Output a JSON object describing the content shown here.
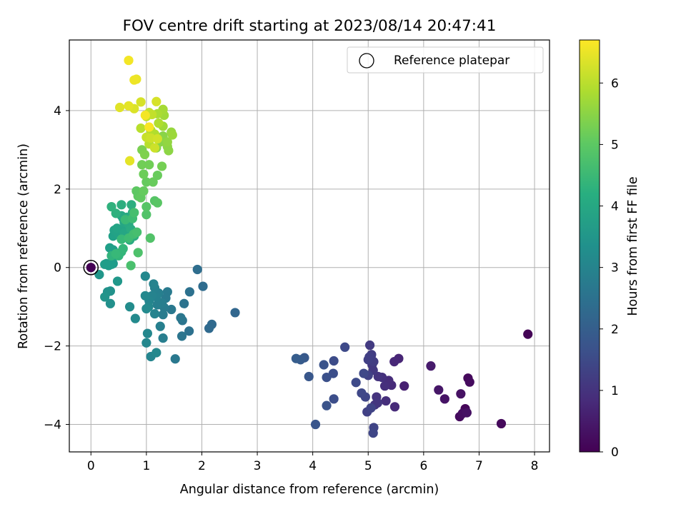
{
  "chart_data": {
    "type": "scatter",
    "title": "FOV centre drift starting at 2023/08/14 20:47:41",
    "xlabel": "Angular distance from reference (arcmin)",
    "ylabel": "Rotation from reference (arcmin)",
    "xlim": [
      -0.39,
      8.27
    ],
    "ylim": [
      -4.7,
      5.8
    ],
    "xticks": [
      0,
      1,
      2,
      3,
      4,
      5,
      6,
      7,
      8
    ],
    "yticks": [
      -4,
      -2,
      0,
      2,
      4
    ],
    "grid": true,
    "legend": {
      "location": "top-right",
      "entries": [
        "Reference platepar"
      ]
    },
    "colorbar": {
      "label": "Hours from first FF file",
      "colormap": "viridis",
      "range": [
        0,
        6.7
      ],
      "ticks": [
        0,
        1,
        2,
        3,
        4,
        5,
        6
      ]
    },
    "reference_point": {
      "x": 0,
      "y": 0
    },
    "series": [
      {
        "points": [
          [
            7.88,
            -1.7,
            0.05
          ],
          [
            7.4,
            -3.98,
            0.15
          ],
          [
            6.75,
            -3.6,
            0.1
          ],
          [
            6.8,
            -2.82,
            0.15
          ],
          [
            6.83,
            -2.92,
            0.2
          ],
          [
            6.65,
            -3.8,
            0.2
          ],
          [
            6.7,
            -3.72,
            0.25
          ],
          [
            6.78,
            -3.7,
            0.3
          ],
          [
            6.67,
            -3.22,
            0.3
          ],
          [
            6.38,
            -3.35,
            0.35
          ],
          [
            6.27,
            -3.12,
            0.4
          ],
          [
            6.13,
            -2.51,
            0.5
          ],
          [
            5.65,
            -3.02,
            0.6
          ],
          [
            5.55,
            -2.32,
            0.7
          ],
          [
            5.47,
            -2.4,
            0.75
          ],
          [
            5.48,
            -3.55,
            0.8
          ],
          [
            5.42,
            -3.0,
            0.8
          ],
          [
            5.37,
            -2.88,
            0.85
          ],
          [
            5.3,
            -3.02,
            0.9
          ],
          [
            5.32,
            -3.4,
            0.9
          ],
          [
            5.25,
            -2.8,
            0.95
          ],
          [
            5.18,
            -2.78,
            1.0
          ],
          [
            5.15,
            -3.3,
            1.0
          ],
          [
            5.17,
            -3.45,
            1.05
          ],
          [
            5.12,
            -3.5,
            1.05
          ],
          [
            5.09,
            -2.62,
            1.1
          ],
          [
            5.07,
            -2.48,
            1.1
          ],
          [
            5.05,
            -2.28,
            1.15
          ],
          [
            5.03,
            -1.98,
            1.15
          ],
          [
            5.06,
            -2.22,
            1.2
          ],
          [
            5.1,
            -2.4,
            1.2
          ],
          [
            5.02,
            -2.28,
            1.25
          ],
          [
            5.0,
            -2.35,
            1.25
          ],
          [
            5.0,
            -2.75,
            1.3
          ],
          [
            4.98,
            -3.68,
            1.3
          ],
          [
            5.05,
            -3.58,
            1.35
          ],
          [
            5.1,
            -4.08,
            1.35
          ],
          [
            5.09,
            -4.22,
            1.4
          ],
          [
            4.95,
            -3.3,
            1.4
          ],
          [
            4.88,
            -3.2,
            1.45
          ],
          [
            4.92,
            -2.7,
            1.45
          ],
          [
            4.78,
            -2.93,
            1.5
          ],
          [
            4.58,
            -2.03,
            1.5
          ],
          [
            4.38,
            -2.38,
            1.55
          ],
          [
            4.37,
            -2.7,
            1.6
          ],
          [
            4.38,
            -3.35,
            1.6
          ],
          [
            4.25,
            -2.8,
            1.65
          ],
          [
            4.2,
            -2.48,
            1.7
          ],
          [
            4.25,
            -3.52,
            1.7
          ],
          [
            4.05,
            -4.0,
            1.75
          ],
          [
            3.93,
            -2.78,
            1.8
          ],
          [
            3.85,
            -2.3,
            1.85
          ],
          [
            3.78,
            -2.35,
            1.9
          ],
          [
            3.7,
            -2.32,
            1.95
          ],
          [
            2.6,
            -1.15,
            2.2
          ],
          [
            2.18,
            -1.45,
            2.3
          ],
          [
            2.13,
            -1.55,
            2.3
          ],
          [
            2.02,
            -0.48,
            2.35
          ],
          [
            1.92,
            -0.05,
            2.4
          ],
          [
            1.78,
            -0.62,
            2.5
          ],
          [
            1.77,
            -1.62,
            2.5
          ],
          [
            1.68,
            -0.92,
            2.55
          ],
          [
            1.65,
            -1.35,
            2.6
          ],
          [
            1.64,
            -1.75,
            2.6
          ],
          [
            1.62,
            -1.28,
            2.65
          ],
          [
            1.52,
            -2.33,
            2.7
          ],
          [
            1.45,
            -1.07,
            2.7
          ],
          [
            1.38,
            -0.62,
            2.75
          ],
          [
            1.35,
            -0.78,
            2.75
          ],
          [
            1.32,
            -1.02,
            2.8
          ],
          [
            1.3,
            -1.2,
            2.8
          ],
          [
            1.3,
            -1.8,
            2.85
          ],
          [
            1.28,
            -0.9,
            2.85
          ],
          [
            1.25,
            -1.5,
            2.9
          ],
          [
            1.22,
            -0.65,
            2.9
          ],
          [
            1.2,
            -0.95,
            2.9
          ],
          [
            1.18,
            -0.75,
            2.95
          ],
          [
            1.15,
            -0.52,
            2.95
          ],
          [
            1.15,
            -1.18,
            3.0
          ],
          [
            1.13,
            -0.42,
            3.0
          ],
          [
            1.1,
            -0.72,
            3.0
          ],
          [
            1.08,
            -2.27,
            3.05
          ],
          [
            1.05,
            -0.85,
            3.05
          ],
          [
            1.04,
            -1.0,
            3.1
          ],
          [
            1.02,
            -1.68,
            3.1
          ],
          [
            1.0,
            -1.92,
            3.1
          ],
          [
            0.98,
            -0.72,
            3.15
          ],
          [
            0.98,
            -0.22,
            3.15
          ],
          [
            1.18,
            -2.17,
            3.15
          ],
          [
            1.0,
            -1.05,
            3.2
          ],
          [
            0.8,
            -1.3,
            3.2
          ],
          [
            0.7,
            -1.0,
            3.25
          ],
          [
            0.35,
            -0.92,
            3.35
          ],
          [
            0.35,
            -0.6,
            3.4
          ],
          [
            0.3,
            -0.62,
            3.4
          ],
          [
            0.25,
            -0.75,
            3.45
          ],
          [
            0.15,
            -0.18,
            3.5
          ],
          [
            0.48,
            -0.35,
            3.55
          ],
          [
            0.4,
            0.1,
            3.6
          ],
          [
            0.32,
            0.05,
            3.65
          ],
          [
            0.28,
            0.1,
            3.65
          ],
          [
            0.25,
            0.08,
            3.7
          ],
          [
            0.37,
            0.08,
            3.7
          ],
          [
            0.34,
            0.5,
            3.75
          ],
          [
            0.4,
            0.45,
            3.75
          ],
          [
            0.45,
            0.3,
            3.8
          ],
          [
            0.4,
            0.8,
            3.8
          ],
          [
            0.42,
            0.95,
            3.85
          ],
          [
            0.5,
            0.85,
            3.85
          ],
          [
            0.47,
            1.0,
            3.9
          ],
          [
            0.58,
            0.98,
            3.9
          ],
          [
            0.6,
            1.15,
            3.95
          ],
          [
            0.6,
            0.88,
            3.95
          ],
          [
            0.55,
            1.32,
            4.0
          ],
          [
            0.58,
            1.25,
            4.0
          ],
          [
            0.65,
            1.28,
            4.05
          ],
          [
            0.68,
            1.1,
            4.05
          ],
          [
            0.72,
            0.98,
            4.1
          ],
          [
            0.7,
            0.7,
            4.1
          ],
          [
            0.78,
            0.8,
            4.15
          ],
          [
            0.75,
            1.4,
            4.15
          ],
          [
            0.73,
            1.6,
            4.2
          ],
          [
            0.55,
            1.6,
            4.2
          ],
          [
            0.45,
            1.38,
            4.25
          ],
          [
            0.37,
            1.55,
            4.3
          ],
          [
            0.37,
            0.3,
            4.35
          ],
          [
            0.5,
            0.3,
            4.4
          ],
          [
            0.55,
            0.4,
            4.4
          ],
          [
            0.58,
            0.48,
            4.45
          ],
          [
            0.45,
            0.35,
            4.5
          ],
          [
            0.55,
            0.72,
            4.5
          ],
          [
            0.62,
            1.22,
            4.55
          ],
          [
            0.68,
            0.75,
            4.6
          ],
          [
            0.75,
            1.25,
            4.6
          ],
          [
            0.77,
            0.85,
            4.65
          ],
          [
            0.83,
            0.9,
            4.7
          ],
          [
            0.78,
            1.4,
            4.7
          ],
          [
            0.72,
            0.05,
            4.75
          ],
          [
            0.85,
            0.38,
            4.8
          ],
          [
            1.07,
            0.75,
            4.85
          ],
          [
            1.0,
            1.35,
            4.85
          ],
          [
            1.0,
            1.55,
            4.9
          ],
          [
            1.15,
            1.7,
            4.9
          ],
          [
            1.2,
            1.65,
            4.95
          ],
          [
            0.82,
            1.95,
            5.0
          ],
          [
            0.85,
            1.82,
            5.0
          ],
          [
            0.9,
            1.78,
            5.05
          ],
          [
            0.95,
            1.95,
            5.1
          ],
          [
            1.0,
            2.18,
            5.1
          ],
          [
            1.12,
            2.18,
            5.15
          ],
          [
            1.2,
            2.35,
            5.15
          ],
          [
            0.95,
            2.38,
            5.2
          ],
          [
            0.92,
            2.62,
            5.25
          ],
          [
            1.05,
            2.62,
            5.25
          ],
          [
            1.28,
            2.58,
            5.3
          ],
          [
            0.92,
            3.0,
            5.35
          ],
          [
            0.97,
            2.88,
            5.4
          ],
          [
            1.18,
            3.05,
            5.45
          ],
          [
            1.25,
            3.2,
            5.5
          ],
          [
            1.3,
            3.35,
            5.5
          ],
          [
            1.38,
            3.08,
            5.55
          ],
          [
            1.4,
            2.98,
            5.55
          ],
          [
            1.38,
            3.2,
            5.6
          ],
          [
            1.45,
            3.45,
            5.65
          ],
          [
            1.47,
            3.38,
            5.7
          ],
          [
            1.3,
            3.6,
            5.75
          ],
          [
            1.32,
            3.88,
            5.75
          ],
          [
            1.3,
            4.03,
            5.8
          ],
          [
            1.2,
            3.92,
            5.85
          ],
          [
            1.22,
            3.68,
            5.9
          ],
          [
            1.15,
            3.4,
            5.9
          ],
          [
            1.08,
            3.5,
            5.95
          ],
          [
            1.05,
            3.15,
            6.0
          ],
          [
            0.9,
            3.55,
            6.0
          ],
          [
            1.0,
            3.85,
            6.05
          ],
          [
            1.05,
            3.95,
            6.1
          ],
          [
            1.1,
            3.9,
            6.1
          ],
          [
            1.0,
            3.32,
            6.15
          ],
          [
            1.15,
            3.05,
            6.2
          ],
          [
            1.08,
            3.3,
            6.2
          ],
          [
            1.2,
            3.28,
            6.25
          ],
          [
            0.9,
            4.22,
            6.3
          ],
          [
            1.18,
            4.23,
            6.3
          ],
          [
            0.78,
            4.05,
            6.35
          ],
          [
            0.52,
            4.08,
            6.4
          ],
          [
            0.68,
            4.12,
            6.45
          ],
          [
            0.7,
            2.72,
            6.45
          ],
          [
            0.82,
            4.8,
            6.5
          ],
          [
            0.78,
            4.78,
            6.55
          ],
          [
            0.68,
            5.28,
            6.6
          ],
          [
            0.98,
            3.88,
            6.6
          ],
          [
            1.05,
            3.58,
            6.65
          ]
        ]
      }
    ]
  }
}
